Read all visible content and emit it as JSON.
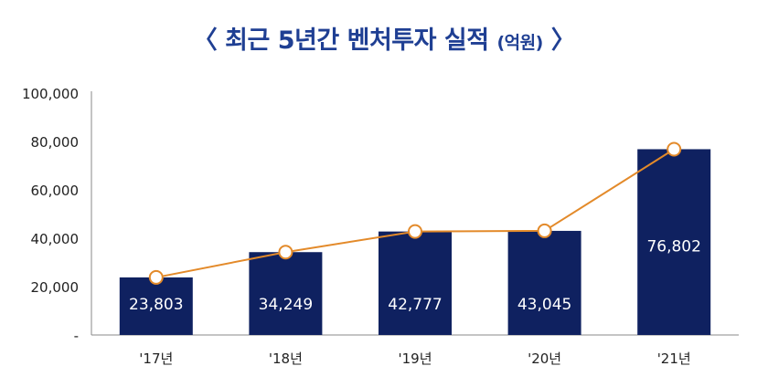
{
  "chart_data": {
    "type": "bar",
    "title": "〈 최근 5년간 벤처투자 실적",
    "unit": "(억원)",
    "title_close": "〉",
    "categories": [
      "'17년",
      "'18년",
      "'19년",
      "'20년",
      "'21년"
    ],
    "values": [
      23803,
      34249,
      42777,
      43045,
      76802
    ],
    "value_labels": [
      "23,803",
      "34,249",
      "42,777",
      "43,045",
      "76,802"
    ],
    "overlay_line": {
      "type": "line",
      "values": [
        23803,
        34249,
        42777,
        43045,
        76802
      ]
    },
    "ylim": [
      0,
      100000
    ],
    "yticks": [
      0,
      20000,
      40000,
      60000,
      80000,
      100000
    ],
    "ytick_labels": [
      "-",
      "20,000",
      "40,000",
      "60,000",
      "80,000",
      "100,000"
    ],
    "xlabel": "",
    "ylabel": "",
    "grid": false,
    "legend": "none",
    "colors": {
      "bar": "#0f2160",
      "line": "#e38a2a",
      "marker_fill": "#ffffff",
      "title": "#1f3f93",
      "text": "#222222"
    }
  }
}
